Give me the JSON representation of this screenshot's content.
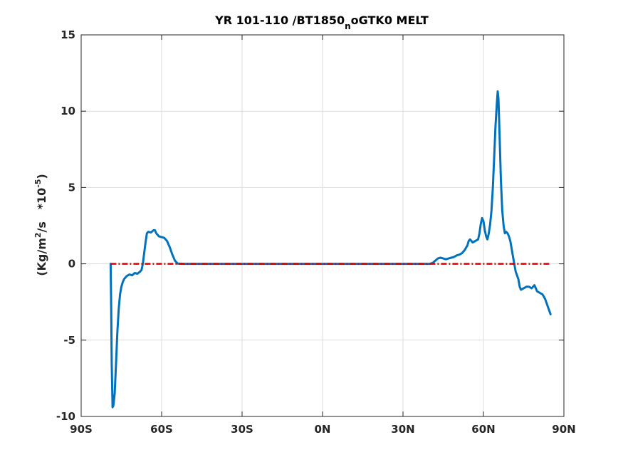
{
  "chart_data": {
    "type": "line",
    "title_main": "YR 101-110 /BT1850",
    "title_sub": "n",
    "title_tail": "oGTK0 MELT",
    "ylabel_main": "(Kg/m",
    "ylabel_sup1": "2",
    "ylabel_mid": "/s   *10",
    "ylabel_sup2": "-5",
    "ylabel_end": ")",
    "xlim": [
      -90,
      90
    ],
    "ylim": [
      -10,
      15
    ],
    "xticks": [
      {
        "value": -90,
        "label": "90S"
      },
      {
        "value": -60,
        "label": "60S"
      },
      {
        "value": -30,
        "label": "30S"
      },
      {
        "value": 0,
        "label": "0N"
      },
      {
        "value": 30,
        "label": "30N"
      },
      {
        "value": 60,
        "label": "60N"
      },
      {
        "value": 90,
        "label": "90N"
      }
    ],
    "yticks": [
      {
        "value": -10,
        "label": "-10"
      },
      {
        "value": -5,
        "label": "-5"
      },
      {
        "value": 0,
        "label": "0"
      },
      {
        "value": 5,
        "label": "5"
      },
      {
        "value": 10,
        "label": "10"
      },
      {
        "value": 15,
        "label": "15"
      }
    ],
    "grid": true,
    "series": [
      {
        "color": "#0072bd",
        "style": "solid",
        "points": [
          [
            -79,
            0.0
          ],
          [
            -78.8,
            -3.0
          ],
          [
            -78.6,
            -6.5
          ],
          [
            -78.3,
            -9.4
          ],
          [
            -78.0,
            -9.3
          ],
          [
            -77.5,
            -8.5
          ],
          [
            -77.0,
            -6.5
          ],
          [
            -76.5,
            -4.5
          ],
          [
            -76.0,
            -3.0
          ],
          [
            -75.5,
            -2.0
          ],
          [
            -75.0,
            -1.5
          ],
          [
            -74.5,
            -1.2
          ],
          [
            -74.0,
            -1.0
          ],
          [
            -73.0,
            -0.8
          ],
          [
            -72.0,
            -0.7
          ],
          [
            -71.0,
            -0.75
          ],
          [
            -70.0,
            -0.6
          ],
          [
            -69.0,
            -0.65
          ],
          [
            -68.0,
            -0.5
          ],
          [
            -67.5,
            -0.4
          ],
          [
            -67.0,
            0.0
          ],
          [
            -66.5,
            0.7
          ],
          [
            -66.0,
            1.4
          ],
          [
            -65.5,
            2.0
          ],
          [
            -65.0,
            2.1
          ],
          [
            -64.0,
            2.05
          ],
          [
            -63.0,
            2.2
          ],
          [
            -62.5,
            2.2
          ],
          [
            -62.0,
            2.0
          ],
          [
            -61.0,
            1.8
          ],
          [
            -60.0,
            1.75
          ],
          [
            -59.0,
            1.7
          ],
          [
            -58.0,
            1.5
          ],
          [
            -57.0,
            1.1
          ],
          [
            -56.0,
            0.6
          ],
          [
            -55.0,
            0.2
          ],
          [
            -54.0,
            0.02
          ],
          [
            -52.0,
            0.0
          ],
          [
            -40.0,
            0.0
          ],
          [
            -20.0,
            0.0
          ],
          [
            0.0,
            0.0
          ],
          [
            20.0,
            0.0
          ],
          [
            40.0,
            0.0
          ],
          [
            41.0,
            0.05
          ],
          [
            42.0,
            0.2
          ],
          [
            43.0,
            0.35
          ],
          [
            44.0,
            0.4
          ],
          [
            45.0,
            0.35
          ],
          [
            46.0,
            0.3
          ],
          [
            47.0,
            0.35
          ],
          [
            48.0,
            0.4
          ],
          [
            49.0,
            0.45
          ],
          [
            50.0,
            0.55
          ],
          [
            51.0,
            0.6
          ],
          [
            52.0,
            0.7
          ],
          [
            53.0,
            0.9
          ],
          [
            54.0,
            1.2
          ],
          [
            54.5,
            1.5
          ],
          [
            55.0,
            1.6
          ],
          [
            55.5,
            1.5
          ],
          [
            56.0,
            1.4
          ],
          [
            57.0,
            1.5
          ],
          [
            58.0,
            1.6
          ],
          [
            58.5,
            2.0
          ],
          [
            59.0,
            2.6
          ],
          [
            59.5,
            3.0
          ],
          [
            60.0,
            2.8
          ],
          [
            60.5,
            2.2
          ],
          [
            61.0,
            1.8
          ],
          [
            61.5,
            1.6
          ],
          [
            62.0,
            2.0
          ],
          [
            62.5,
            2.6
          ],
          [
            63.0,
            3.5
          ],
          [
            63.5,
            5.0
          ],
          [
            64.0,
            7.0
          ],
          [
            64.5,
            9.0
          ],
          [
            65.0,
            10.5
          ],
          [
            65.3,
            11.3
          ],
          [
            65.6,
            10.8
          ],
          [
            66.0,
            8.5
          ],
          [
            66.5,
            5.5
          ],
          [
            67.0,
            3.5
          ],
          [
            67.5,
            2.5
          ],
          [
            68.0,
            2.0
          ],
          [
            68.5,
            2.1
          ],
          [
            69.0,
            2.0
          ],
          [
            69.5,
            1.8
          ],
          [
            70.0,
            1.5
          ],
          [
            70.5,
            1.0
          ],
          [
            71.0,
            0.5
          ],
          [
            71.5,
            0.0
          ],
          [
            72.0,
            -0.5
          ],
          [
            73.0,
            -1.0
          ],
          [
            73.5,
            -1.5
          ],
          [
            74.0,
            -1.7
          ],
          [
            75.0,
            -1.6
          ],
          [
            76.0,
            -1.5
          ],
          [
            77.0,
            -1.5
          ],
          [
            78.0,
            -1.6
          ],
          [
            79.0,
            -1.4
          ],
          [
            79.5,
            -1.6
          ],
          [
            80.0,
            -1.8
          ],
          [
            81.0,
            -1.9
          ],
          [
            82.0,
            -2.0
          ],
          [
            83.0,
            -2.3
          ],
          [
            84.0,
            -2.8
          ],
          [
            85.0,
            -3.3
          ]
        ]
      },
      {
        "color": "#d90000",
        "style": "dashed",
        "points": [
          [
            -79,
            0.0
          ],
          [
            85,
            0.0
          ]
        ]
      }
    ]
  }
}
